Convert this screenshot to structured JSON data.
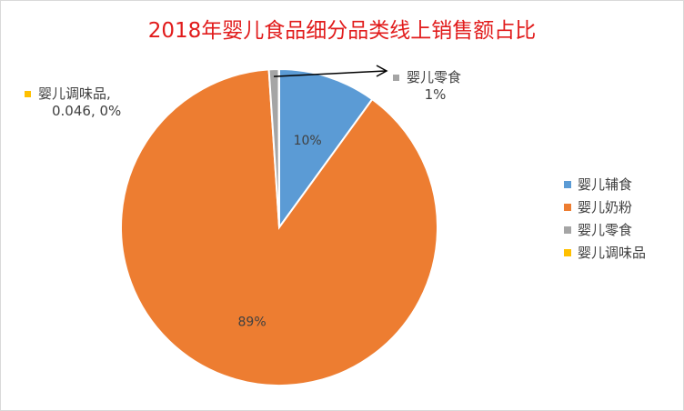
{
  "chart_data": {
    "type": "pie",
    "title": "2018年婴儿食品细分品类线上销售额占比",
    "slices": [
      {
        "name": "婴儿辅食",
        "value": 10,
        "label": "10%",
        "color": "#5b9bd5"
      },
      {
        "name": "婴儿奶粉",
        "value": 89,
        "label": "89%",
        "color": "#ed7d31"
      },
      {
        "name": "婴儿零食",
        "value": 1,
        "label": "1%",
        "color": "#a5a5a5"
      },
      {
        "name": "婴儿调味品",
        "value": 0.046,
        "label": "0%",
        "color": "#ffc000"
      }
    ],
    "legend": {
      "position": "right",
      "items": [
        "婴儿辅食",
        "婴儿奶粉",
        "婴儿零食",
        "婴儿调味品"
      ]
    },
    "external_labels": {
      "snack": {
        "name": "婴儿零食",
        "value_text": "1%"
      },
      "seasoning": {
        "line1": "婴儿调味品,",
        "line2": "0.046, 0%"
      }
    },
    "start_angle_deg": 0,
    "clockwise": true
  }
}
